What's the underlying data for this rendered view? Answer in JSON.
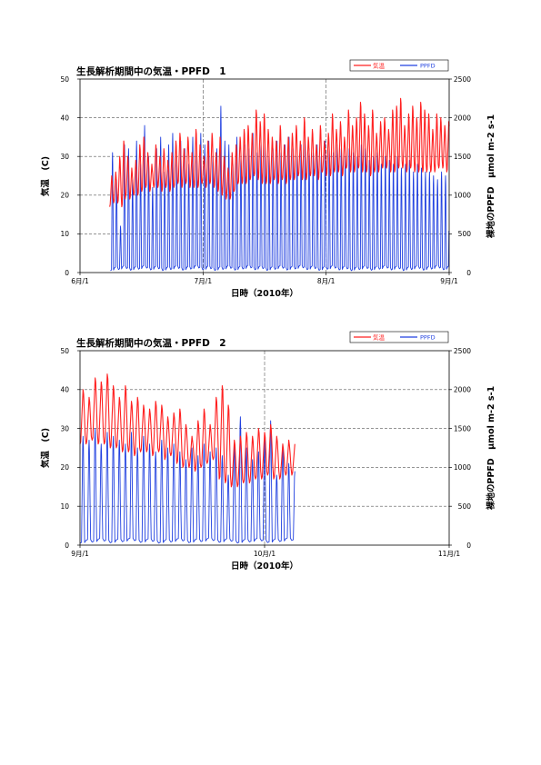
{
  "chart_data": [
    {
      "type": "line",
      "title": "生長解析期間中の気温・PPFD　1",
      "xlabel": "日時（2010年）",
      "ylabel_left": "気温　(C)",
      "ylabel_right": "裸地のPPFD　μmol m-2 s-1",
      "x_ticks": [
        "6月/1",
        "7月/1",
        "8月/1",
        "9月/1"
      ],
      "x_range_days": [
        0,
        92
      ],
      "x_gridlines": [
        "7月/1",
        "8月/1"
      ],
      "ylim_left": [
        0,
        50
      ],
      "ylim_right": [
        0,
        2500
      ],
      "y_ticks_left": [
        0,
        10,
        20,
        30,
        40,
        50
      ],
      "y_ticks_right": [
        0,
        500,
        1000,
        1500,
        2000,
        2500
      ],
      "legend_position": "top-right",
      "series": [
        {
          "name": "気温",
          "color": "#ff2020",
          "axis": "left",
          "start_day": 7.4,
          "end_day": 92,
          "daily_min": [
            17,
            18,
            18,
            17,
            20,
            19,
            20,
            20,
            21,
            22,
            21,
            22,
            22,
            21,
            22,
            21,
            22,
            23,
            22,
            23,
            22,
            22,
            22,
            23,
            22,
            23,
            22,
            21,
            20,
            19,
            19,
            21,
            23,
            23,
            23,
            24,
            25,
            24,
            23,
            23,
            23,
            24,
            23,
            24,
            23,
            24,
            24,
            25,
            24,
            24,
            25,
            25,
            24,
            26,
            25,
            25,
            26,
            26,
            25,
            27,
            26,
            26,
            27,
            26,
            26,
            25,
            26,
            26,
            27,
            27,
            26,
            26,
            27,
            27,
            26,
            27,
            26,
            26,
            26,
            26,
            26,
            26,
            27,
            27,
            26
          ],
          "daily_max": [
            25,
            26,
            30,
            34,
            30,
            27,
            29,
            33,
            35,
            31,
            28,
            33,
            30,
            32,
            29,
            31,
            34,
            36,
            32,
            35,
            31,
            37,
            33,
            30,
            34,
            36,
            31,
            35,
            30,
            27,
            31,
            33,
            35,
            37,
            38,
            36,
            42,
            39,
            41,
            37,
            35,
            34,
            38,
            33,
            35,
            36,
            38,
            34,
            40,
            35,
            37,
            33,
            38,
            34,
            36,
            41,
            37,
            39,
            35,
            42,
            38,
            40,
            44,
            41,
            38,
            42,
            36,
            39,
            40,
            37,
            42,
            43,
            45,
            38,
            41,
            43,
            40,
            44,
            42,
            41,
            37,
            41,
            40,
            38,
            39
          ]
        },
        {
          "name": "PPFD",
          "color": "#2040e0",
          "axis": "right",
          "start_day": 7.6,
          "end_day": 92,
          "daily_peak": [
            1550,
            1200,
            600,
            1650,
            1600,
            1200,
            1700,
            1400,
            1900,
            1500,
            1100,
            1600,
            1750,
            1300,
            1650,
            1800,
            1500,
            1700,
            1600,
            1400,
            1750,
            1550,
            1800,
            1650,
            1700,
            1500,
            1600,
            2150,
            1700,
            1650,
            1400,
            1750,
            1500,
            1650,
            1600,
            1800,
            1550,
            1700,
            1650,
            1500,
            1600,
            1700,
            1550,
            1650,
            1750,
            1600,
            1500,
            1650,
            1700,
            1600,
            1550,
            1650,
            1500,
            1700,
            1600,
            1550,
            1650,
            1600,
            1500,
            1600,
            1550,
            1500,
            1650,
            1600,
            1450,
            1500,
            1550,
            1400,
            1500,
            1450,
            1400,
            1500,
            1350,
            1400,
            1450,
            1300,
            1400,
            1350,
            1300,
            1300,
            1250,
            1200,
            1300,
            1250,
            1200
          ]
        }
      ]
    },
    {
      "type": "line",
      "title": "生長解析期間中の気温・PPFD　2",
      "xlabel": "日時（2010年）",
      "ylabel_left": "気温　(C)",
      "ylabel_right": "裸地のPPFD　μmol m-2 s-1",
      "x_ticks": [
        "9月/1",
        "10月/1",
        "11月/1"
      ],
      "x_range_days": [
        0,
        61
      ],
      "x_gridlines": [
        "10月/1"
      ],
      "ylim_left": [
        0,
        50
      ],
      "ylim_right": [
        0,
        2500
      ],
      "y_ticks_left": [
        0,
        10,
        20,
        30,
        40,
        50
      ],
      "y_ticks_right": [
        0,
        500,
        1000,
        1500,
        2000,
        2500
      ],
      "legend_position": "top-right",
      "series": [
        {
          "name": "気温",
          "color": "#ff2020",
          "axis": "left",
          "start_day": 0,
          "end_day": 35.5,
          "daily_min": [
            26,
            26,
            27,
            26,
            26,
            25,
            25,
            24,
            24,
            23,
            24,
            24,
            23,
            24,
            22,
            23,
            21,
            20,
            20,
            19,
            20,
            21,
            22,
            17,
            16,
            15,
            15,
            16,
            16,
            17,
            17,
            18,
            17,
            17,
            18,
            18
          ],
          "daily_max": [
            40,
            38,
            43,
            42,
            44,
            41,
            38,
            41,
            37,
            38,
            36,
            35,
            37,
            36,
            33,
            34,
            35,
            31,
            28,
            32,
            35,
            31,
            38,
            41,
            36,
            27,
            28,
            29,
            28,
            30,
            29,
            31,
            28,
            26,
            27,
            26
          ]
        },
        {
          "name": "PPFD",
          "color": "#2040e0",
          "axis": "right",
          "start_day": 0,
          "end_day": 35.5,
          "daily_peak": [
            1400,
            1350,
            1500,
            1300,
            1450,
            1400,
            1350,
            1300,
            1450,
            1250,
            1400,
            1300,
            1200,
            1350,
            1250,
            1300,
            1200,
            1100,
            1250,
            1150,
            1300,
            1200,
            1250,
            1150,
            900,
            1300,
            1650,
            1250,
            1100,
            1200,
            1350,
            1600,
            900,
            1300,
            1050,
            950
          ]
        }
      ]
    }
  ]
}
